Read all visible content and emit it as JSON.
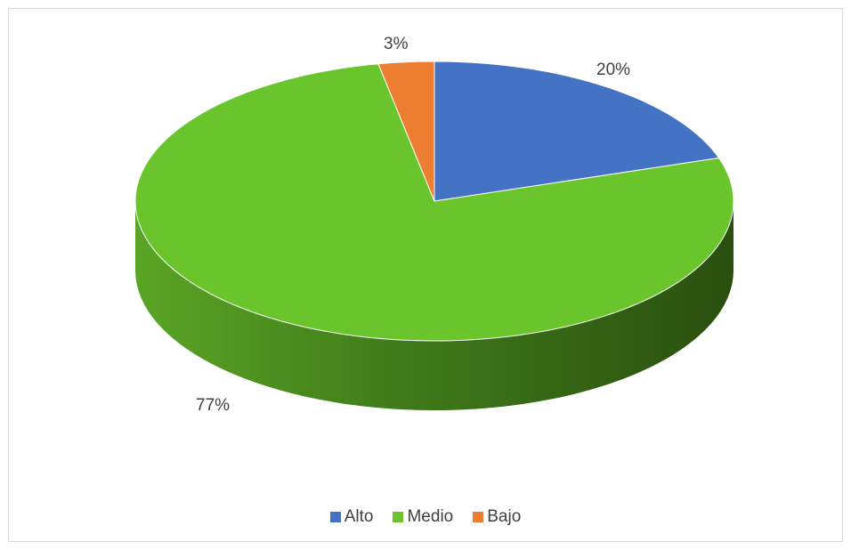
{
  "chart_data": {
    "type": "pie",
    "style": "3d",
    "categories": [
      "Alto",
      "Medio",
      "Bajo"
    ],
    "values": [
      20,
      77,
      3
    ],
    "data_labels": [
      "20%",
      "77%",
      "3%"
    ],
    "colors": [
      "#4472c4",
      "#6ac42c",
      "#ed7d31"
    ],
    "legend_position": "bottom",
    "title": ""
  }
}
